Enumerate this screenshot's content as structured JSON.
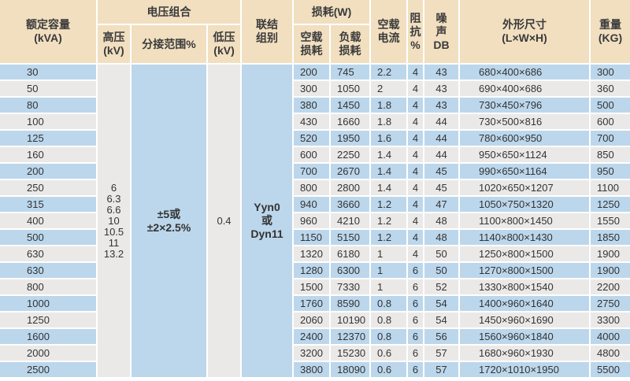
{
  "header": {
    "capacity": [
      "额定容量",
      "(kVA)"
    ],
    "voltage_group": "电压组合",
    "hv": [
      "高压",
      "(kV)"
    ],
    "tap_range": "分接范围%",
    "lv": [
      "低压",
      "(kV)"
    ],
    "connection": [
      "联结",
      "组别"
    ],
    "loss": "损耗(W)",
    "noload_loss": [
      "空载",
      "损耗"
    ],
    "load_loss": [
      "负载",
      "损耗"
    ],
    "noload_current": [
      "空载",
      "电流"
    ],
    "impedance": [
      "阻",
      "抗",
      "%"
    ],
    "noise": [
      "噪",
      "声",
      "DB"
    ],
    "dimensions": [
      "外形尺寸",
      "(L×W×H)"
    ],
    "weight": [
      "重量",
      "(KG)"
    ]
  },
  "merged": {
    "hv_values": [
      "6",
      "6.3",
      "6.6",
      "10",
      "10.5",
      "11",
      "13.2"
    ],
    "tap_range": [
      "±5或",
      "±2×2.5%"
    ],
    "lv_value": "0.4",
    "connection": [
      "Yyn0",
      "或",
      "Dyn11"
    ]
  },
  "rows": [
    [
      "30",
      "200",
      "745",
      "2.2",
      "4",
      "43",
      "680×400×686",
      "300"
    ],
    [
      "50",
      "300",
      "1050",
      "2",
      "4",
      "43",
      "690×400×686",
      "360"
    ],
    [
      "80",
      "380",
      "1450",
      "1.8",
      "4",
      "43",
      "730×450×796",
      "500"
    ],
    [
      "100",
      "430",
      "1660",
      "1.8",
      "4",
      "44",
      "730×500×816",
      "600"
    ],
    [
      "125",
      "520",
      "1950",
      "1.6",
      "4",
      "44",
      "780×600×950",
      "700"
    ],
    [
      "160",
      "600",
      "2250",
      "1.4",
      "4",
      "44",
      "950×650×1124",
      "850"
    ],
    [
      "200",
      "700",
      "2670",
      "1.4",
      "4",
      "45",
      "990×650×1164",
      "950"
    ],
    [
      "250",
      "800",
      "2800",
      "1.4",
      "4",
      "45",
      "1020×650×1207",
      "1100"
    ],
    [
      "315",
      "940",
      "3660",
      "1.2",
      "4",
      "47",
      "1050×750×1320",
      "1250"
    ],
    [
      "400",
      "960",
      "4210",
      "1.2",
      "4",
      "48",
      "1100×800×1450",
      "1550"
    ],
    [
      "500",
      "1150",
      "5150",
      "1.2",
      "4",
      "48",
      "1140×800×1430",
      "1850"
    ],
    [
      "630",
      "1320",
      "6180",
      "1",
      "4",
      "50",
      "1250×800×1500",
      "1900"
    ],
    [
      "630",
      "1280",
      "6300",
      "1",
      "6",
      "50",
      "1270×800×1500",
      "1900"
    ],
    [
      "800",
      "1500",
      "7330",
      "1",
      "6",
      "52",
      "1330×800×1540",
      "2200"
    ],
    [
      "1000",
      "1760",
      "8590",
      "0.8",
      "6",
      "54",
      "1400×960×1640",
      "2750"
    ],
    [
      "1250",
      "2060",
      "10190",
      "0.8",
      "6",
      "54",
      "1450×960×1690",
      "3300"
    ],
    [
      "1600",
      "2400",
      "12370",
      "0.8",
      "6",
      "56",
      "1560×960×1840",
      "4000"
    ],
    [
      "2000",
      "3200",
      "15230",
      "0.6",
      "6",
      "57",
      "1680×960×1930",
      "4800"
    ],
    [
      "2500",
      "3800",
      "18090",
      "0.6",
      "6",
      "57",
      "1720×1010×1950",
      "5500"
    ]
  ],
  "colors": {
    "header_bg": "#f1dfc0",
    "row_blue": "#bcd7ec",
    "row_gray": "#ebe9e7"
  }
}
